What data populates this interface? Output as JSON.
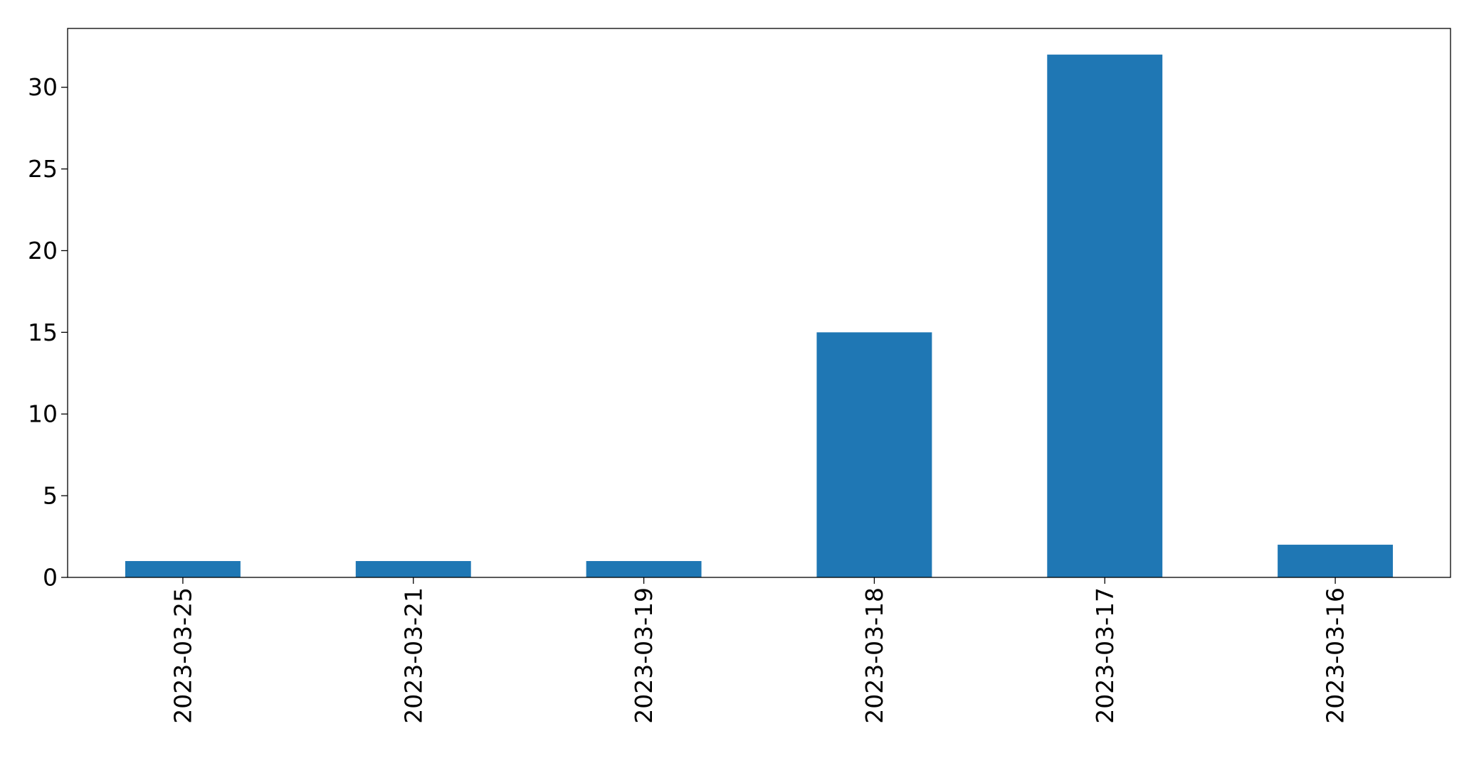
{
  "chart_data": {
    "type": "bar",
    "title": "",
    "xlabel": "",
    "ylabel": "",
    "categories": [
      "2023-03-25",
      "2023-03-21",
      "2023-03-19",
      "2023-03-18",
      "2023-03-17",
      "2023-03-16"
    ],
    "values": [
      1,
      1,
      1,
      15,
      32,
      2
    ],
    "ylim": [
      0,
      33.6
    ],
    "yticks": [
      0,
      5,
      10,
      15,
      20,
      25,
      30
    ],
    "grid": false,
    "legend": "none",
    "bar_color": "#1f77b4"
  }
}
